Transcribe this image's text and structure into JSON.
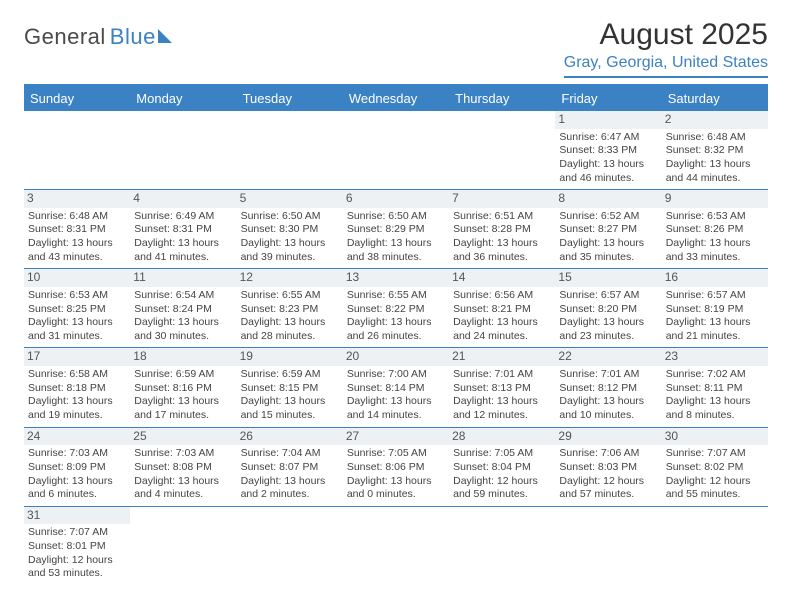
{
  "logo": {
    "main": "General",
    "accent": "Blue"
  },
  "title": "August 2025",
  "location": "Gray, Georgia, United States",
  "colors": {
    "accent": "#3b82c4",
    "header_bg": "#3b82c4",
    "date_bg": "#eef1f4",
    "text": "#444444",
    "page_bg": "#ffffff"
  },
  "typography": {
    "title_fontsize": 30,
    "location_fontsize": 16,
    "dayheader_fontsize": 13,
    "cell_fontsize": 10.5,
    "datenum_fontsize": 12
  },
  "day_headers": [
    "Sunday",
    "Monday",
    "Tuesday",
    "Wednesday",
    "Thursday",
    "Friday",
    "Saturday"
  ],
  "weeks": [
    [
      {
        "date": "",
        "sunrise": "",
        "sunset": "",
        "daylight": ""
      },
      {
        "date": "",
        "sunrise": "",
        "sunset": "",
        "daylight": ""
      },
      {
        "date": "",
        "sunrise": "",
        "sunset": "",
        "daylight": ""
      },
      {
        "date": "",
        "sunrise": "",
        "sunset": "",
        "daylight": ""
      },
      {
        "date": "",
        "sunrise": "",
        "sunset": "",
        "daylight": ""
      },
      {
        "date": "1",
        "sunrise": "Sunrise: 6:47 AM",
        "sunset": "Sunset: 8:33 PM",
        "daylight": "Daylight: 13 hours and 46 minutes."
      },
      {
        "date": "2",
        "sunrise": "Sunrise: 6:48 AM",
        "sunset": "Sunset: 8:32 PM",
        "daylight": "Daylight: 13 hours and 44 minutes."
      }
    ],
    [
      {
        "date": "3",
        "sunrise": "Sunrise: 6:48 AM",
        "sunset": "Sunset: 8:31 PM",
        "daylight": "Daylight: 13 hours and 43 minutes."
      },
      {
        "date": "4",
        "sunrise": "Sunrise: 6:49 AM",
        "sunset": "Sunset: 8:31 PM",
        "daylight": "Daylight: 13 hours and 41 minutes."
      },
      {
        "date": "5",
        "sunrise": "Sunrise: 6:50 AM",
        "sunset": "Sunset: 8:30 PM",
        "daylight": "Daylight: 13 hours and 39 minutes."
      },
      {
        "date": "6",
        "sunrise": "Sunrise: 6:50 AM",
        "sunset": "Sunset: 8:29 PM",
        "daylight": "Daylight: 13 hours and 38 minutes."
      },
      {
        "date": "7",
        "sunrise": "Sunrise: 6:51 AM",
        "sunset": "Sunset: 8:28 PM",
        "daylight": "Daylight: 13 hours and 36 minutes."
      },
      {
        "date": "8",
        "sunrise": "Sunrise: 6:52 AM",
        "sunset": "Sunset: 8:27 PM",
        "daylight": "Daylight: 13 hours and 35 minutes."
      },
      {
        "date": "9",
        "sunrise": "Sunrise: 6:53 AM",
        "sunset": "Sunset: 8:26 PM",
        "daylight": "Daylight: 13 hours and 33 minutes."
      }
    ],
    [
      {
        "date": "10",
        "sunrise": "Sunrise: 6:53 AM",
        "sunset": "Sunset: 8:25 PM",
        "daylight": "Daylight: 13 hours and 31 minutes."
      },
      {
        "date": "11",
        "sunrise": "Sunrise: 6:54 AM",
        "sunset": "Sunset: 8:24 PM",
        "daylight": "Daylight: 13 hours and 30 minutes."
      },
      {
        "date": "12",
        "sunrise": "Sunrise: 6:55 AM",
        "sunset": "Sunset: 8:23 PM",
        "daylight": "Daylight: 13 hours and 28 minutes."
      },
      {
        "date": "13",
        "sunrise": "Sunrise: 6:55 AM",
        "sunset": "Sunset: 8:22 PM",
        "daylight": "Daylight: 13 hours and 26 minutes."
      },
      {
        "date": "14",
        "sunrise": "Sunrise: 6:56 AM",
        "sunset": "Sunset: 8:21 PM",
        "daylight": "Daylight: 13 hours and 24 minutes."
      },
      {
        "date": "15",
        "sunrise": "Sunrise: 6:57 AM",
        "sunset": "Sunset: 8:20 PM",
        "daylight": "Daylight: 13 hours and 23 minutes."
      },
      {
        "date": "16",
        "sunrise": "Sunrise: 6:57 AM",
        "sunset": "Sunset: 8:19 PM",
        "daylight": "Daylight: 13 hours and 21 minutes."
      }
    ],
    [
      {
        "date": "17",
        "sunrise": "Sunrise: 6:58 AM",
        "sunset": "Sunset: 8:18 PM",
        "daylight": "Daylight: 13 hours and 19 minutes."
      },
      {
        "date": "18",
        "sunrise": "Sunrise: 6:59 AM",
        "sunset": "Sunset: 8:16 PM",
        "daylight": "Daylight: 13 hours and 17 minutes."
      },
      {
        "date": "19",
        "sunrise": "Sunrise: 6:59 AM",
        "sunset": "Sunset: 8:15 PM",
        "daylight": "Daylight: 13 hours and 15 minutes."
      },
      {
        "date": "20",
        "sunrise": "Sunrise: 7:00 AM",
        "sunset": "Sunset: 8:14 PM",
        "daylight": "Daylight: 13 hours and 14 minutes."
      },
      {
        "date": "21",
        "sunrise": "Sunrise: 7:01 AM",
        "sunset": "Sunset: 8:13 PM",
        "daylight": "Daylight: 13 hours and 12 minutes."
      },
      {
        "date": "22",
        "sunrise": "Sunrise: 7:01 AM",
        "sunset": "Sunset: 8:12 PM",
        "daylight": "Daylight: 13 hours and 10 minutes."
      },
      {
        "date": "23",
        "sunrise": "Sunrise: 7:02 AM",
        "sunset": "Sunset: 8:11 PM",
        "daylight": "Daylight: 13 hours and 8 minutes."
      }
    ],
    [
      {
        "date": "24",
        "sunrise": "Sunrise: 7:03 AM",
        "sunset": "Sunset: 8:09 PM",
        "daylight": "Daylight: 13 hours and 6 minutes."
      },
      {
        "date": "25",
        "sunrise": "Sunrise: 7:03 AM",
        "sunset": "Sunset: 8:08 PM",
        "daylight": "Daylight: 13 hours and 4 minutes."
      },
      {
        "date": "26",
        "sunrise": "Sunrise: 7:04 AM",
        "sunset": "Sunset: 8:07 PM",
        "daylight": "Daylight: 13 hours and 2 minutes."
      },
      {
        "date": "27",
        "sunrise": "Sunrise: 7:05 AM",
        "sunset": "Sunset: 8:06 PM",
        "daylight": "Daylight: 13 hours and 0 minutes."
      },
      {
        "date": "28",
        "sunrise": "Sunrise: 7:05 AM",
        "sunset": "Sunset: 8:04 PM",
        "daylight": "Daylight: 12 hours and 59 minutes."
      },
      {
        "date": "29",
        "sunrise": "Sunrise: 7:06 AM",
        "sunset": "Sunset: 8:03 PM",
        "daylight": "Daylight: 12 hours and 57 minutes."
      },
      {
        "date": "30",
        "sunrise": "Sunrise: 7:07 AM",
        "sunset": "Sunset: 8:02 PM",
        "daylight": "Daylight: 12 hours and 55 minutes."
      }
    ],
    [
      {
        "date": "31",
        "sunrise": "Sunrise: 7:07 AM",
        "sunset": "Sunset: 8:01 PM",
        "daylight": "Daylight: 12 hours and 53 minutes."
      },
      {
        "date": "",
        "sunrise": "",
        "sunset": "",
        "daylight": ""
      },
      {
        "date": "",
        "sunrise": "",
        "sunset": "",
        "daylight": ""
      },
      {
        "date": "",
        "sunrise": "",
        "sunset": "",
        "daylight": ""
      },
      {
        "date": "",
        "sunrise": "",
        "sunset": "",
        "daylight": ""
      },
      {
        "date": "",
        "sunrise": "",
        "sunset": "",
        "daylight": ""
      },
      {
        "date": "",
        "sunrise": "",
        "sunset": "",
        "daylight": ""
      }
    ]
  ]
}
